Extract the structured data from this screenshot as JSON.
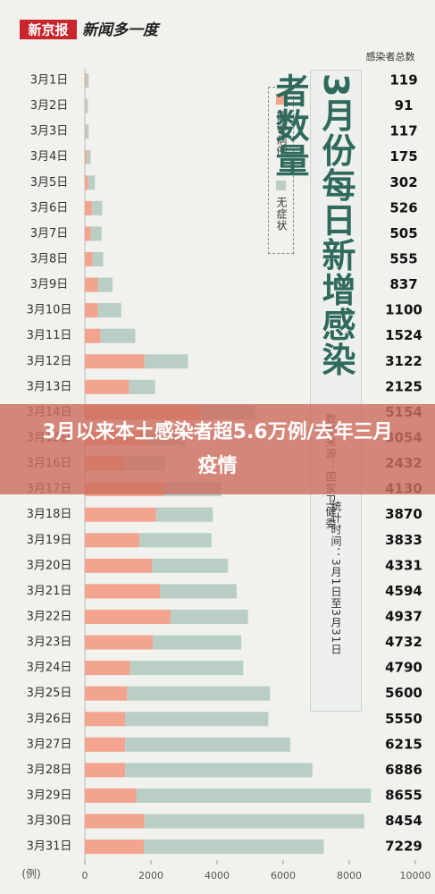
{
  "header": {
    "logo": "新京报",
    "slogan": "新闻多一度"
  },
  "chart_data": {
    "type": "bar",
    "orientation": "horizontal",
    "title": "3月份每日新增感染者数量",
    "source": "数据来源：国家卫健委",
    "period": "统计时间：3月1日至3月31日",
    "unit": "(例)",
    "totals_label": "感染者总数",
    "categories": [
      "3月1日",
      "3月2日",
      "3月3日",
      "3月4日",
      "3月5日",
      "3月6日",
      "3月7日",
      "3月8日",
      "3月9日",
      "3月10日",
      "3月11日",
      "3月12日",
      "3月13日",
      "3月14日",
      "3月15日",
      "3月16日",
      "3月17日",
      "3月18日",
      "3月19日",
      "3月20日",
      "3月21日",
      "3月22日",
      "3月23日",
      "3月24日",
      "3月25日",
      "3月26日",
      "3月27日",
      "3月28日",
      "3月29日",
      "3月30日",
      "3月31日"
    ],
    "series": [
      {
        "name": "确诊病例",
        "color": "#f2a48e",
        "values": [
          35,
          19,
          22,
          60,
          102,
          214,
          175,
          233,
          402,
          397,
          476,
          1807,
          1337,
          3507,
          1860,
          1226,
          2388,
          2157,
          1656,
          2027,
          2274,
          2591,
          2054,
          1366,
          1280,
          1217,
          1219,
          1219,
          1565,
          1803,
          1787
        ]
      },
      {
        "name": "无症状",
        "color": "#b9cfc6",
        "values": [
          84,
          72,
          95,
          115,
          200,
          312,
          330,
          322,
          435,
          703,
          1048,
          1315,
          788,
          1647,
          1194,
          1206,
          1742,
          1713,
          2177,
          2304,
          2320,
          2346,
          2678,
          3424,
          4320,
          4333,
          4996,
          5667,
          7090,
          6651,
          5442
        ]
      }
    ],
    "totals": [
      119,
      91,
      117,
      175,
      302,
      526,
      505,
      555,
      837,
      1100,
      1524,
      3122,
      2125,
      5154,
      3054,
      2432,
      4130,
      3870,
      3833,
      4331,
      4594,
      4937,
      4732,
      4790,
      5600,
      5550,
      6215,
      6886,
      8655,
      8454,
      7229
    ],
    "xlim": [
      0,
      10000
    ],
    "xticks": [
      0,
      2000,
      4000,
      6000,
      8000,
      10000
    ],
    "grid": false
  },
  "banner": {
    "text": "3月以来本土感染者超5.6万例/去年三月疫情"
  }
}
